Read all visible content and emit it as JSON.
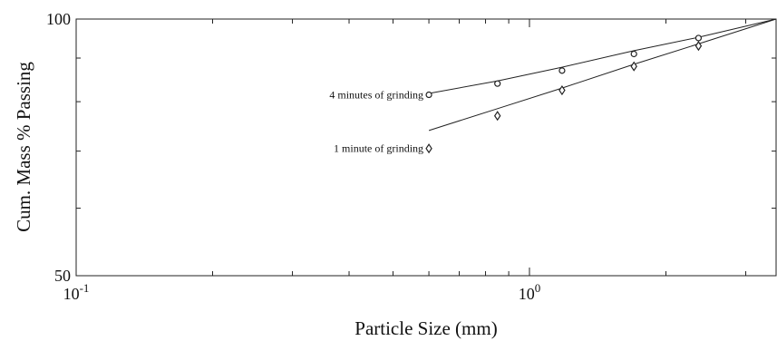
{
  "chart_data": {
    "type": "scatter",
    "title": "",
    "xlabel": "Particle Size (mm)",
    "ylabel": "Cum. Mass % Passing",
    "x_scale": "log",
    "y_scale": "log",
    "xlim": [
      0.1,
      3.5
    ],
    "ylim": [
      50,
      100
    ],
    "x_ticks": [
      {
        "value": 0.1,
        "base": "10",
        "exp": "-1"
      },
      {
        "value": 1,
        "base": "10",
        "exp": "0"
      }
    ],
    "y_ticks": [
      {
        "value": 50,
        "label": "50"
      },
      {
        "value": 100,
        "label": "100"
      }
    ],
    "grid": false,
    "series": [
      {
        "name": "4 minutes of grinding",
        "marker": "circle",
        "points": [
          {
            "x": 0.6,
            "y": 81.5
          },
          {
            "x": 0.85,
            "y": 84.0
          },
          {
            "x": 1.18,
            "y": 87.0
          },
          {
            "x": 1.7,
            "y": 91.0
          },
          {
            "x": 2.36,
            "y": 95.0
          }
        ],
        "fit": [
          {
            "x": 0.6,
            "y": 81.8
          },
          {
            "x": 0.85,
            "y": 84.6
          },
          {
            "x": 1.18,
            "y": 87.8
          },
          {
            "x": 1.7,
            "y": 91.8
          },
          {
            "x": 2.36,
            "y": 95.2
          },
          {
            "x": 3.5,
            "y": 100
          }
        ]
      },
      {
        "name": "1 minute of grinding",
        "marker": "diamond",
        "points": [
          {
            "x": 0.6,
            "y": 70.5
          },
          {
            "x": 0.85,
            "y": 77.0
          },
          {
            "x": 1.18,
            "y": 82.5
          },
          {
            "x": 1.7,
            "y": 88.0
          },
          {
            "x": 2.36,
            "y": 93.0
          }
        ],
        "fit": [
          {
            "x": 0.6,
            "y": 74.0
          },
          {
            "x": 0.85,
            "y": 78.5
          },
          {
            "x": 1.18,
            "y": 83.0
          },
          {
            "x": 1.7,
            "y": 88.5
          },
          {
            "x": 2.36,
            "y": 93.5
          },
          {
            "x": 3.5,
            "y": 100
          }
        ]
      }
    ]
  }
}
